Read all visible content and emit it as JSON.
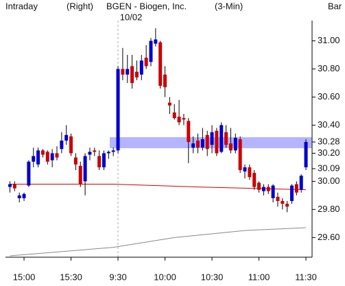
{
  "chart_data": {
    "type": "candlestick",
    "header": [
      "Intraday",
      "(Right)",
      "BGEN - Biogen, Inc.",
      "(3-Min)",
      "Bar"
    ],
    "day_break": {
      "label": "10/02",
      "index": 23
    },
    "categories": [
      null,
      null,
      null,
      "15:00",
      null,
      null,
      null,
      null,
      null,
      null,
      null,
      null,
      null,
      "15:30",
      null,
      null,
      null,
      null,
      null,
      null,
      null,
      null,
      null,
      "9:30",
      null,
      null,
      null,
      null,
      null,
      null,
      null,
      null,
      null,
      "10:00",
      null,
      null,
      null,
      null,
      null,
      null,
      null,
      null,
      null,
      "10:30",
      null,
      null,
      null,
      null,
      null,
      null,
      null,
      null,
      null,
      "11:00",
      null,
      null,
      null,
      null,
      null,
      null,
      null,
      null,
      null,
      "11:30"
    ],
    "open": [
      29.96,
      29.98,
      29.88,
      29.88,
      29.97,
      30.14,
      30.12,
      30.22,
      30.21,
      30.15,
      30.2,
      30.23,
      30.29,
      30.32,
      30.17,
      30.11,
      30.0,
      30.19,
      30.22,
      30.18,
      30.1,
      30.2,
      30.21,
      30.22,
      30.8,
      30.76,
      30.82,
      30.78,
      30.76,
      30.88,
      30.85,
      30.98,
      30.99,
      30.76,
      30.56,
      30.49,
      30.46,
      30.45,
      30.43,
      30.24,
      30.29,
      30.24,
      30.33,
      30.26,
      30.36,
      30.21,
      30.35,
      30.27,
      30.22,
      30.3,
      30.07,
      30.1,
      30.06,
      29.99,
      29.93,
      29.96,
      29.88,
      29.89,
      29.86,
      29.84,
      29.86,
      29.98,
      29.94,
      30.1
    ],
    "high": [
      30.0,
      30.0,
      29.92,
      29.92,
      30.15,
      30.24,
      30.24,
      30.23,
      30.22,
      30.23,
      30.25,
      30.35,
      30.4,
      30.34,
      30.2,
      30.14,
      30.2,
      30.24,
      30.24,
      30.22,
      30.22,
      30.22,
      30.24,
      30.82,
      30.95,
      30.9,
      30.9,
      30.86,
      30.9,
      30.97,
      31.02,
      31.09,
      31.0,
      30.82,
      30.6,
      30.55,
      30.58,
      30.48,
      30.45,
      30.32,
      30.34,
      30.38,
      30.36,
      30.4,
      30.38,
      30.42,
      30.4,
      30.38,
      30.34,
      30.32,
      30.12,
      30.12,
      30.08,
      30.0,
      29.98,
      29.98,
      29.98,
      29.92,
      29.88,
      29.86,
      29.98,
      30.0,
      30.05,
      30.3
    ],
    "low": [
      29.92,
      29.93,
      29.85,
      29.86,
      29.96,
      30.1,
      30.1,
      30.17,
      30.12,
      30.1,
      30.15,
      30.2,
      30.26,
      30.18,
      30.08,
      29.96,
      29.9,
      30.15,
      30.18,
      30.08,
      30.08,
      30.16,
      30.18,
      30.2,
      30.72,
      30.7,
      30.66,
      30.72,
      30.72,
      30.8,
      30.82,
      30.96,
      30.66,
      30.6,
      30.48,
      30.44,
      30.4,
      30.4,
      30.13,
      30.2,
      30.2,
      30.22,
      30.18,
      30.2,
      30.18,
      30.2,
      30.24,
      30.2,
      30.2,
      30.06,
      30.02,
      30.01,
      29.94,
      29.92,
      29.9,
      29.91,
      29.85,
      29.82,
      29.8,
      29.78,
      29.84,
      29.9,
      29.92,
      30.08
    ],
    "close": [
      29.98,
      29.95,
      29.9,
      29.91,
      30.14,
      30.18,
      30.22,
      30.19,
      30.14,
      30.2,
      30.17,
      30.29,
      30.33,
      30.2,
      30.12,
      29.98,
      30.18,
      30.21,
      30.21,
      30.1,
      30.2,
      30.21,
      30.22,
      30.8,
      30.76,
      30.8,
      30.7,
      30.74,
      30.86,
      30.82,
      31.0,
      31.01,
      30.68,
      30.67,
      30.54,
      30.45,
      30.42,
      30.44,
      30.28,
      30.27,
      30.24,
      30.3,
      30.23,
      30.35,
      30.2,
      30.4,
      30.26,
      30.22,
      30.31,
      30.08,
      30.1,
      30.03,
      29.96,
      29.94,
      29.96,
      29.93,
      29.97,
      29.86,
      29.84,
      29.82,
      29.97,
      29.92,
      30.04,
      30.28
    ],
    "up_color": "#0000cc",
    "down_color": "#cc0000",
    "overlays": [
      {
        "color": "#cc0000",
        "x": [
          0,
          22,
          40,
          63
        ],
        "values": [
          29.98,
          29.98,
          29.96,
          29.94
        ]
      },
      {
        "color": "#888888",
        "x": [
          0,
          22,
          35,
          50,
          63
        ],
        "values": [
          29.47,
          29.53,
          29.6,
          29.65,
          29.67
        ]
      }
    ],
    "highlight": {
      "value": 30.28,
      "color": "#7777ff"
    },
    "ylim": [
      29.46,
      31.12
    ],
    "yticks": [
      {
        "value": 29.6,
        "label": "29.60"
      },
      {
        "value": 29.8,
        "label": "29.80"
      },
      {
        "value": 30.0,
        "label": "30.00"
      },
      {
        "value": 30.2,
        "label": "30.20"
      },
      {
        "value": 30.4,
        "label": "30.40"
      },
      {
        "value": 30.6,
        "label": "30.60"
      },
      {
        "value": 30.8,
        "label": "30.80"
      },
      {
        "value": 31.0,
        "label": "31.00"
      }
    ],
    "price_labels": [
      {
        "value": 30.28,
        "label": "30.28"
      },
      {
        "value": 30.09,
        "label": "30.09"
      }
    ]
  }
}
